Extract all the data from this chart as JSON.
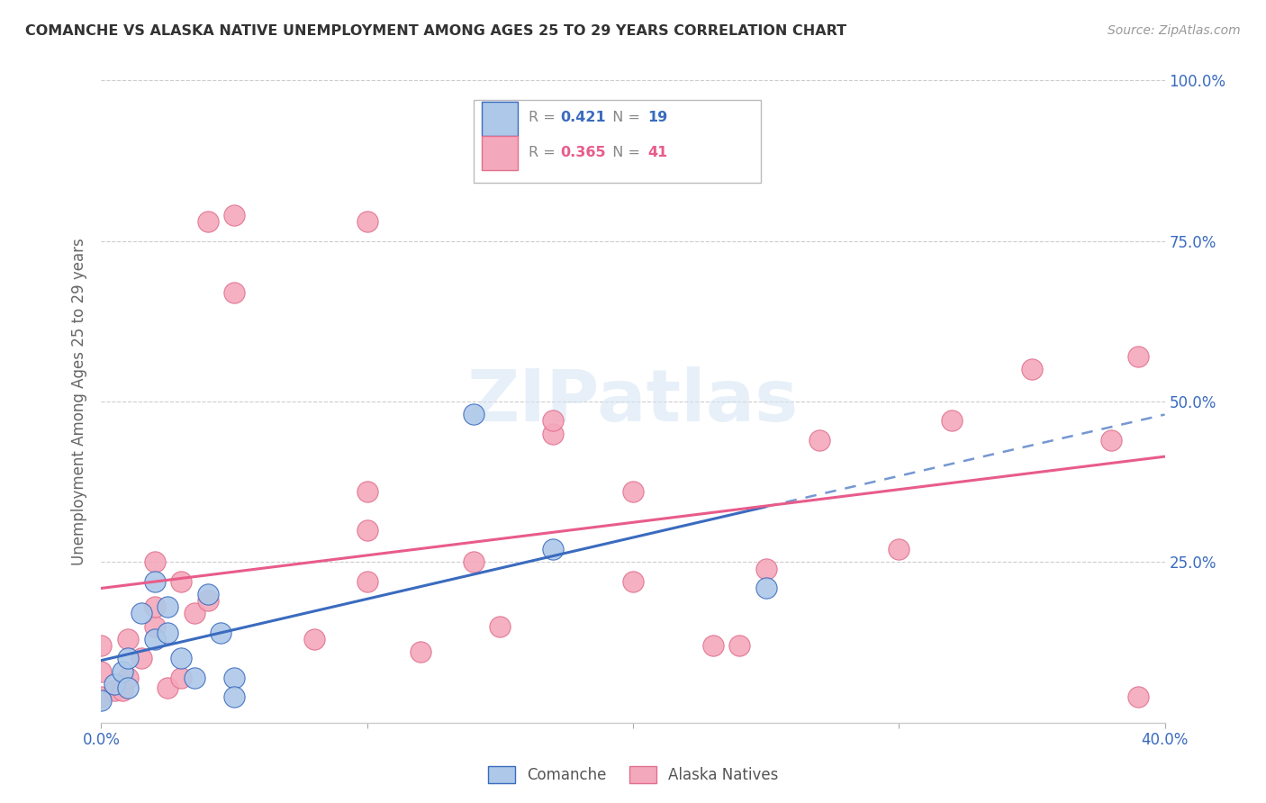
{
  "title": "COMANCHE VS ALASKA NATIVE UNEMPLOYMENT AMONG AGES 25 TO 29 YEARS CORRELATION CHART",
  "source": "Source: ZipAtlas.com",
  "ylabel": "Unemployment Among Ages 25 to 29 years",
  "xlim": [
    0.0,
    0.4
  ],
  "ylim": [
    0.0,
    1.0
  ],
  "xticks": [
    0.0,
    0.1,
    0.2,
    0.3,
    0.4
  ],
  "xticklabels": [
    "0.0%",
    "",
    "",
    "",
    "40.0%"
  ],
  "yticks_right": [
    0.0,
    0.25,
    0.5,
    0.75,
    1.0
  ],
  "yticklabels_right": [
    "",
    "25.0%",
    "50.0%",
    "75.0%",
    "100.0%"
  ],
  "comanche_R": 0.421,
  "comanche_N": 19,
  "alaska_R": 0.365,
  "alaska_N": 41,
  "comanche_color": "#adc8e8",
  "alaska_color": "#f4a8bb",
  "comanche_line_color": "#3a6bbf",
  "alaska_line_color": "#e85c8a",
  "background_color": "#ffffff",
  "watermark": "ZIPatlas",
  "comanche_x": [
    0.0,
    0.005,
    0.008,
    0.01,
    0.01,
    0.015,
    0.02,
    0.02,
    0.025,
    0.025,
    0.03,
    0.035,
    0.04,
    0.045,
    0.05,
    0.05,
    0.14,
    0.17,
    0.25
  ],
  "comanche_y": [
    0.035,
    0.06,
    0.08,
    0.055,
    0.1,
    0.17,
    0.13,
    0.22,
    0.14,
    0.18,
    0.1,
    0.07,
    0.2,
    0.14,
    0.07,
    0.04,
    0.48,
    0.27,
    0.21
  ],
  "alaska_x": [
    0.0,
    0.0,
    0.0,
    0.005,
    0.008,
    0.01,
    0.01,
    0.015,
    0.02,
    0.02,
    0.02,
    0.025,
    0.03,
    0.03,
    0.035,
    0.04,
    0.04,
    0.05,
    0.05,
    0.08,
    0.1,
    0.1,
    0.1,
    0.1,
    0.12,
    0.14,
    0.15,
    0.17,
    0.17,
    0.2,
    0.2,
    0.23,
    0.24,
    0.25,
    0.27,
    0.3,
    0.32,
    0.35,
    0.38,
    0.39,
    0.39
  ],
  "alaska_y": [
    0.04,
    0.08,
    0.12,
    0.05,
    0.05,
    0.07,
    0.13,
    0.1,
    0.15,
    0.18,
    0.25,
    0.055,
    0.07,
    0.22,
    0.17,
    0.19,
    0.78,
    0.79,
    0.67,
    0.13,
    0.22,
    0.3,
    0.36,
    0.78,
    0.11,
    0.25,
    0.15,
    0.45,
    0.47,
    0.22,
    0.36,
    0.12,
    0.12,
    0.24,
    0.44,
    0.27,
    0.47,
    0.55,
    0.44,
    0.57,
    0.04
  ]
}
